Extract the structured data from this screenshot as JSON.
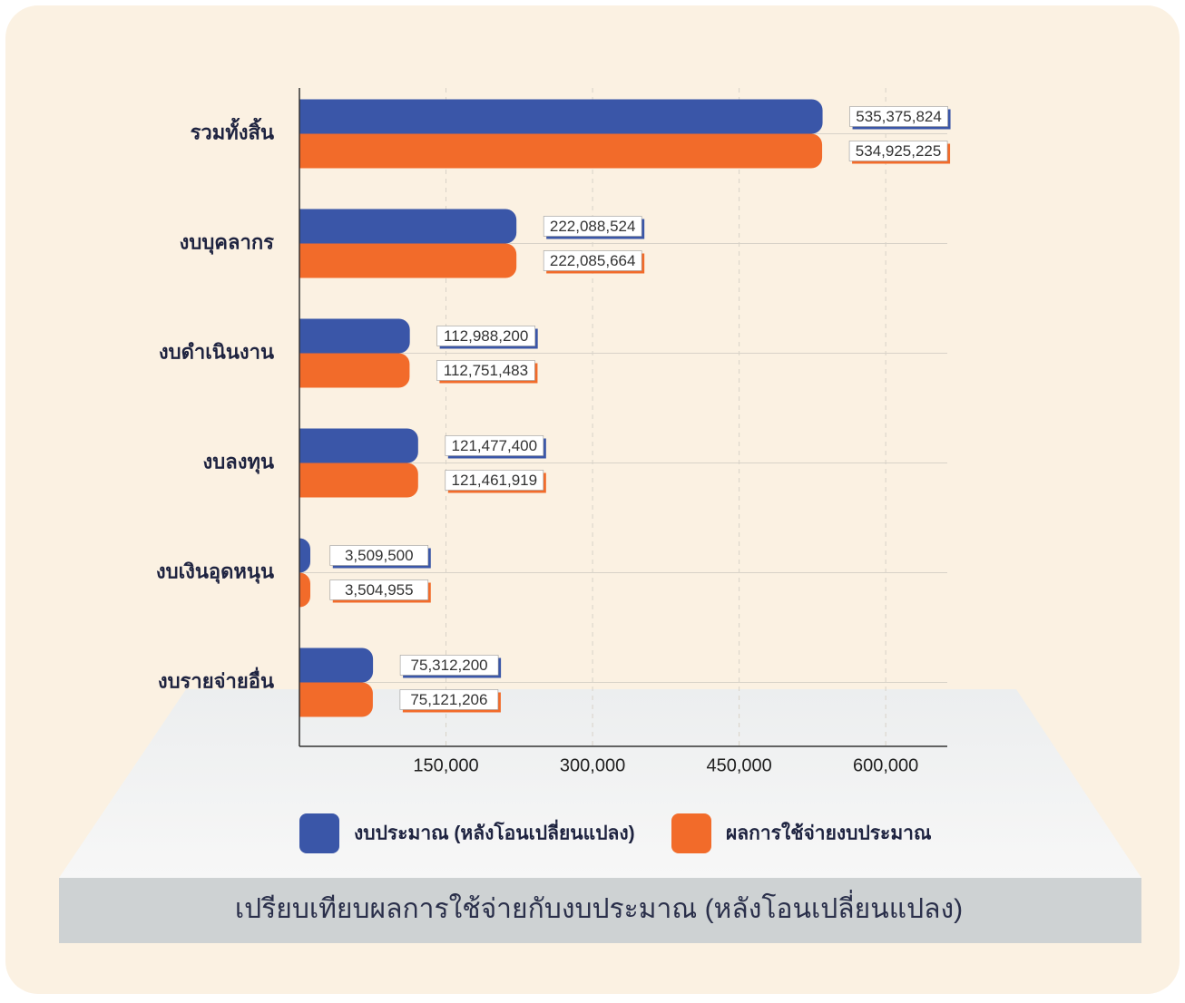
{
  "chart_data": {
    "type": "hbar",
    "title": "เปรียบเทียบผลการใช้จ่ายกับงบประมาณ (หลังโอนเปลี่ยนแปลง)",
    "categories": [
      "รวมทั้งสิ้น",
      "งบบุคลากร",
      "งบดำเนินงาน",
      "งบลงทุน",
      "งบเงินอุดหนุน",
      "งบรายจ่ายอื่น"
    ],
    "series": [
      {
        "name": "งบประมาณ (หลังโอนเปลี่ยนแปลง)",
        "color": "#3a56a8",
        "values": [
          535375.824,
          222088.524,
          112988.2,
          121477.4,
          3509.5,
          75312.2
        ],
        "value_labels": [
          "535,375,824",
          "222,088,524",
          "112,988,200",
          "121,477,400",
          "3,509,500",
          "75,312,200"
        ]
      },
      {
        "name": "ผลการใช้จ่ายงบประมาณ",
        "color": "#f26b2a",
        "values": [
          534925.225,
          222085.664,
          112751.483,
          121461.919,
          3504.955,
          75121.206
        ],
        "value_labels": [
          "534,925,225",
          "222,085,664",
          "112,751,483",
          "121,461,919",
          "3,504,955",
          "75,121,206"
        ]
      }
    ],
    "xlim": [
      0,
      663000
    ],
    "xticks": [
      {
        "value": 150000,
        "label": "150,000"
      },
      {
        "value": 300000,
        "label": "300,000"
      },
      {
        "value": 450000,
        "label": "450,000"
      },
      {
        "value": 600000,
        "label": "600,000"
      }
    ],
    "grid": true,
    "legend": "bottom"
  }
}
